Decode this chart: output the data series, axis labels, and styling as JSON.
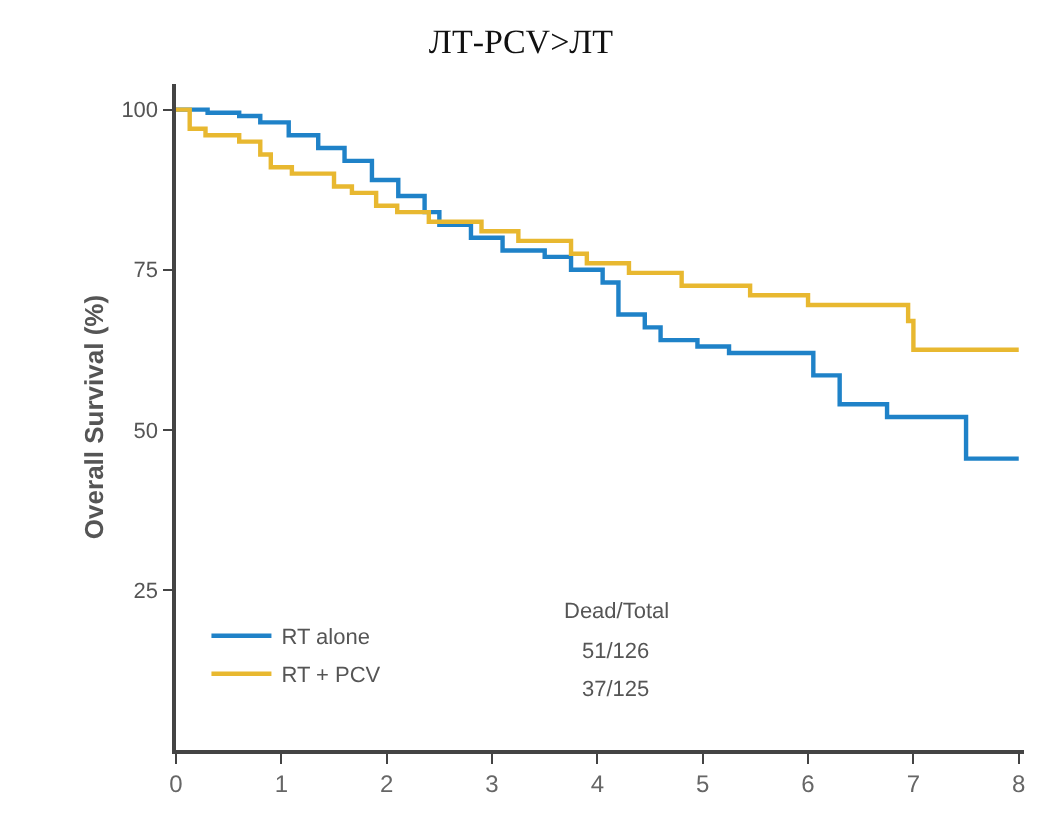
{
  "chart_data": {
    "type": "step",
    "title": "ЛТ-PCV>ЛТ",
    "ylabel": "Overall Survival (%)",
    "xlim": [
      0,
      8.05
    ],
    "xticks": [
      0,
      1,
      2,
      3,
      4,
      5,
      6,
      7,
      8
    ],
    "ylim": [
      0,
      104
    ],
    "yticks": [
      25,
      50,
      75,
      100
    ],
    "legend": "bottom left",
    "annotations": [
      "Dead/Total",
      "51/126",
      "37/125"
    ],
    "series": [
      {
        "name": "RT alone",
        "color": "#1f82c8",
        "x": [
          0,
          0.3,
          0.6,
          0.8,
          1.07,
          1.35,
          1.6,
          1.86,
          2.11,
          2.36,
          2.5,
          2.8,
          3.1,
          3.5,
          3.75,
          4.05,
          4.2,
          4.45,
          4.6,
          4.95,
          5.25,
          6.05,
          6.3,
          6.75,
          7.5,
          8
        ],
        "values": [
          100,
          99.5,
          99,
          98,
          96,
          94,
          92,
          89,
          86.5,
          84,
          82,
          80,
          78,
          77,
          75,
          73,
          68,
          66,
          64,
          63,
          62,
          58.5,
          54,
          52,
          45.5,
          45.5
        ]
      },
      {
        "name": "RT + PCV",
        "color": "#e8b830",
        "x": [
          0,
          0.13,
          0.28,
          0.6,
          0.8,
          0.9,
          1.1,
          1.5,
          1.67,
          1.9,
          2.1,
          2.4,
          2.9,
          3.25,
          3.75,
          3.9,
          4.3,
          4.8,
          5.45,
          6.0,
          6.95,
          7.0,
          8
        ],
        "values": [
          100,
          97,
          96,
          95,
          93,
          91,
          90,
          88,
          87,
          85,
          84,
          82.5,
          81,
          79.5,
          77.5,
          76,
          74.5,
          72.5,
          71,
          69.5,
          67,
          62.5,
          62.5
        ]
      }
    ]
  }
}
